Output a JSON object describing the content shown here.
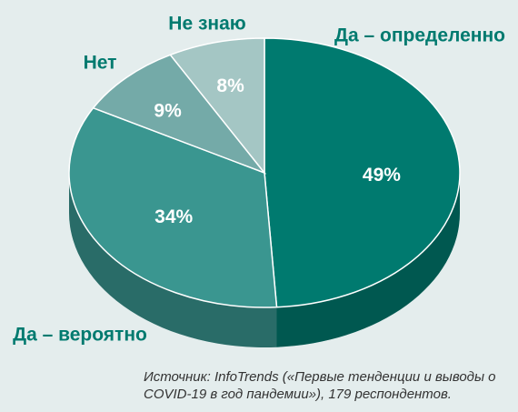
{
  "chart_data": {
    "type": "pie",
    "categories": [
      "Да – определенно",
      "Да – вероятно",
      "Нет",
      "Не знаю"
    ],
    "values": [
      49,
      34,
      9,
      8
    ],
    "value_labels": [
      "49%",
      "34%",
      "9%",
      "8%"
    ],
    "colors": [
      "#007a6f",
      "#3a9690",
      "#74aaa8",
      "#a4c6c4"
    ],
    "note": "Источник: InfoTrends («Первые тенденции и выводы о COVID-19 в год пандемии»), 179 респондентов."
  }
}
